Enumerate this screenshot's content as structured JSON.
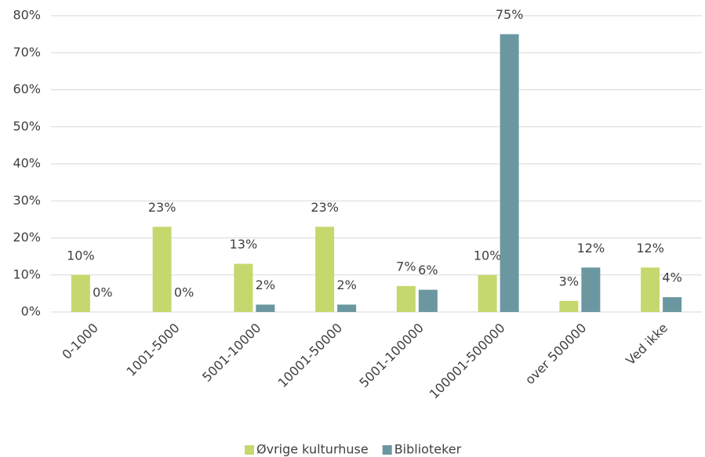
{
  "chart_data": {
    "type": "bar",
    "categories": [
      "0-1000",
      "1001-5000",
      "5001-10000",
      "10001-50000",
      "5001-100000",
      "100001-500000",
      "over 500000",
      "Ved ikke"
    ],
    "series": [
      {
        "name": "Øvrige kulturhuse",
        "color": "#c5d86d",
        "values": [
          10,
          23,
          13,
          23,
          7,
          10,
          3,
          12
        ],
        "value_labels": [
          "10%",
          "23%",
          "13%",
          "23%",
          "7%",
          "10%",
          "3%",
          "12%"
        ]
      },
      {
        "name": "Biblioteker",
        "color": "#6b97a0",
        "values": [
          0,
          0,
          2,
          2,
          6,
          75,
          12,
          4
        ],
        "value_labels": [
          "0%",
          "0%",
          "2%",
          "2%",
          "6%",
          "75%",
          "12%",
          "4%"
        ]
      }
    ],
    "ylim": [
      0,
      80
    ],
    "yticks": [
      {
        "value": 0,
        "label": "0%"
      },
      {
        "value": 10,
        "label": "10%"
      },
      {
        "value": 20,
        "label": "20%"
      },
      {
        "value": 30,
        "label": "30%"
      },
      {
        "value": 40,
        "label": "40%"
      },
      {
        "value": 50,
        "label": "50%"
      },
      {
        "value": 60,
        "label": "60%"
      },
      {
        "value": 70,
        "label": "70%"
      },
      {
        "value": 80,
        "label": "80%"
      }
    ],
    "grid": true,
    "legend": "bottom"
  }
}
